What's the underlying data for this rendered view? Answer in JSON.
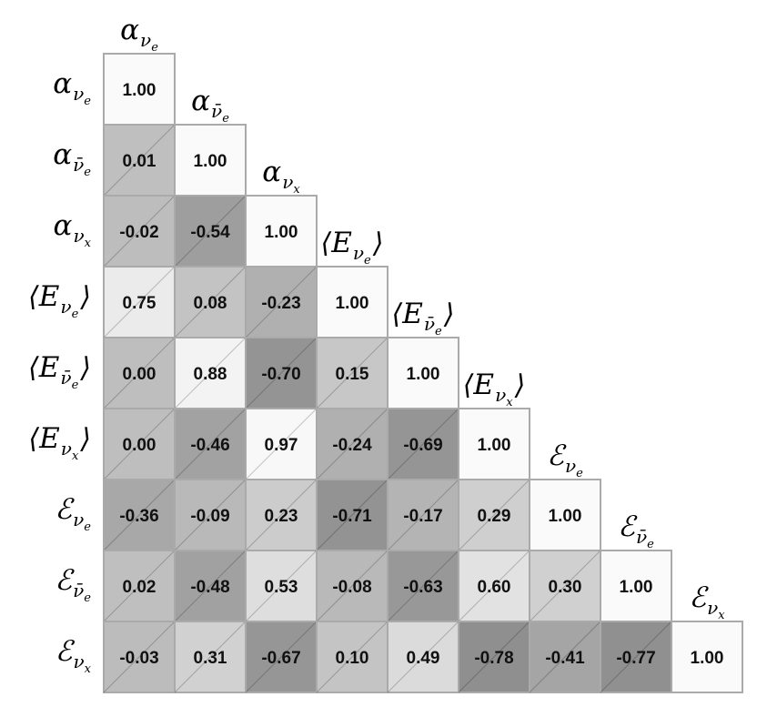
{
  "chart_data": {
    "type": "heatmap",
    "subtype": "lower-triangular correlation matrix",
    "color_scale": "grayscale: darker = lower correlation, white = 1.00",
    "variables": [
      {
        "base": "α",
        "sub": "ν",
        "subsub": "e",
        "bar": false,
        "angle": false
      },
      {
        "base": "α",
        "sub": "ν̄",
        "subsub": "e",
        "bar": true,
        "angle": false
      },
      {
        "base": "α",
        "sub": "ν",
        "subsub": "x",
        "bar": false,
        "angle": false
      },
      {
        "base": "E",
        "sub": "ν",
        "subsub": "e",
        "bar": false,
        "angle": true
      },
      {
        "base": "E",
        "sub": "ν̄",
        "subsub": "e",
        "bar": true,
        "angle": true
      },
      {
        "base": "E",
        "sub": "ν",
        "subsub": "x",
        "bar": false,
        "angle": true
      },
      {
        "base": "ℰ",
        "sub": "ν",
        "subsub": "e",
        "bar": false,
        "angle": false
      },
      {
        "base": "ℰ",
        "sub": "ν̄",
        "subsub": "e",
        "bar": true,
        "angle": false
      },
      {
        "base": "ℰ",
        "sub": "ν",
        "subsub": "x",
        "bar": false,
        "angle": false
      }
    ],
    "matrix": [
      [
        "1.00"
      ],
      [
        "0.01",
        "1.00"
      ],
      [
        "-0.02",
        "-0.54",
        "1.00"
      ],
      [
        "0.75",
        "0.08",
        "-0.23",
        "1.00"
      ],
      [
        "0.00",
        "0.88",
        "-0.70",
        "0.15",
        "1.00"
      ],
      [
        "0.00",
        "-0.46",
        "0.97",
        "-0.24",
        "-0.69",
        "1.00"
      ],
      [
        "-0.36",
        "-0.09",
        "0.23",
        "-0.71",
        "-0.17",
        "0.29",
        "1.00"
      ],
      [
        "0.02",
        "-0.48",
        "0.53",
        "-0.08",
        "-0.63",
        "0.60",
        "0.30",
        "1.00"
      ],
      [
        "-0.03",
        "0.31",
        "-0.67",
        "0.10",
        "0.49",
        "-0.78",
        "-0.41",
        "-0.77",
        "1.00"
      ]
    ]
  }
}
